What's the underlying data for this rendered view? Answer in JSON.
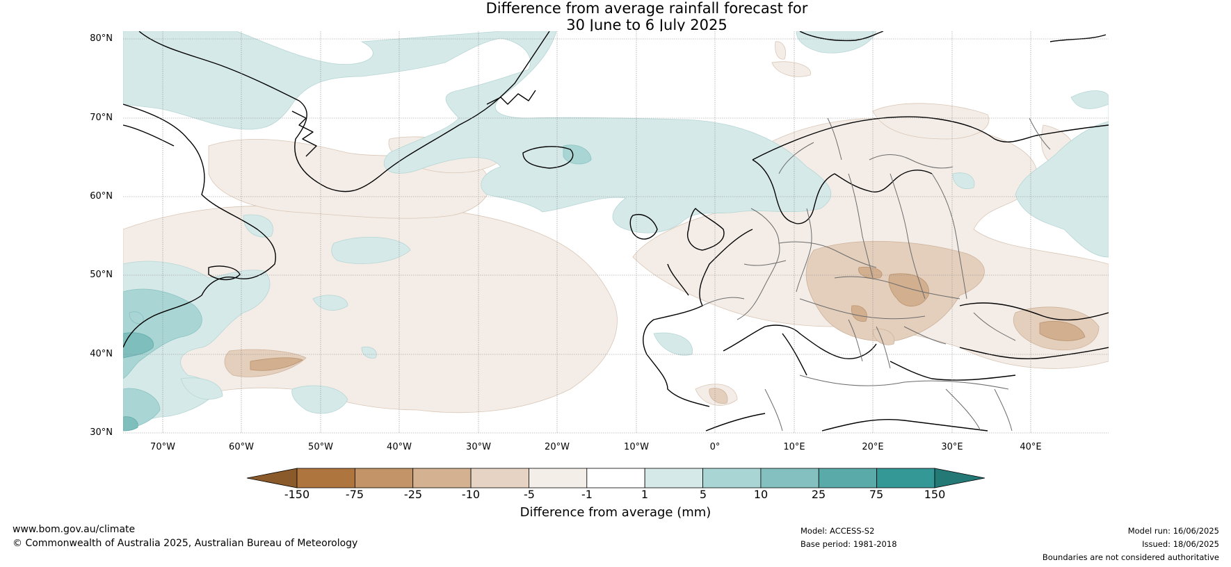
{
  "title": {
    "line1": "Difference from average rainfall forecast for",
    "line2": "30 June to 6 July 2025"
  },
  "map": {
    "lat_labels": [
      "80°N",
      "70°N",
      "60°N",
      "50°N",
      "40°N",
      "30°N"
    ],
    "lon_labels": [
      "70°W",
      "60°W",
      "50°W",
      "40°W",
      "30°W",
      "20°W",
      "10°W",
      "0°",
      "10°E",
      "20°E",
      "30°E",
      "40°E"
    ],
    "colors": {
      "dry_light": "#f4ede7",
      "dry_mid": "#e4cfbd",
      "dry_strong": "#d2af8f",
      "wet_light": "#d5e9e8",
      "wet_mid": "#a9d5d4",
      "wet_strong": "#7ebebd",
      "coast": "#000000",
      "border": "#6b6b6b"
    }
  },
  "colorbar": {
    "title": "Difference from average (mm)",
    "ticks": [
      "-150",
      "-75",
      "-25",
      "-10",
      "-5",
      "-1",
      "1",
      "5",
      "10",
      "25",
      "75",
      "150"
    ],
    "colors": [
      "#8b5a2b",
      "#ae753f",
      "#c29468",
      "#d3b191",
      "#e7d3c3",
      "#f4eee9",
      "#ffffff",
      "#d5e9e8",
      "#a9d5d4",
      "#83c0bf",
      "#5aaaa9",
      "#349897",
      "#247876"
    ]
  },
  "footer": {
    "site": "www.bom.gov.au/climate",
    "copyright": "© Commonwealth of Australia 2025, Australian Bureau of Meteorology",
    "model": "Model: ACCESS-S2",
    "base_period": "Base period: 1981-2018",
    "model_run": "Model run: 16/06/2025",
    "issued": "Issued: 18/06/2025",
    "disclaimer": "Boundaries are not considered authoritative"
  }
}
